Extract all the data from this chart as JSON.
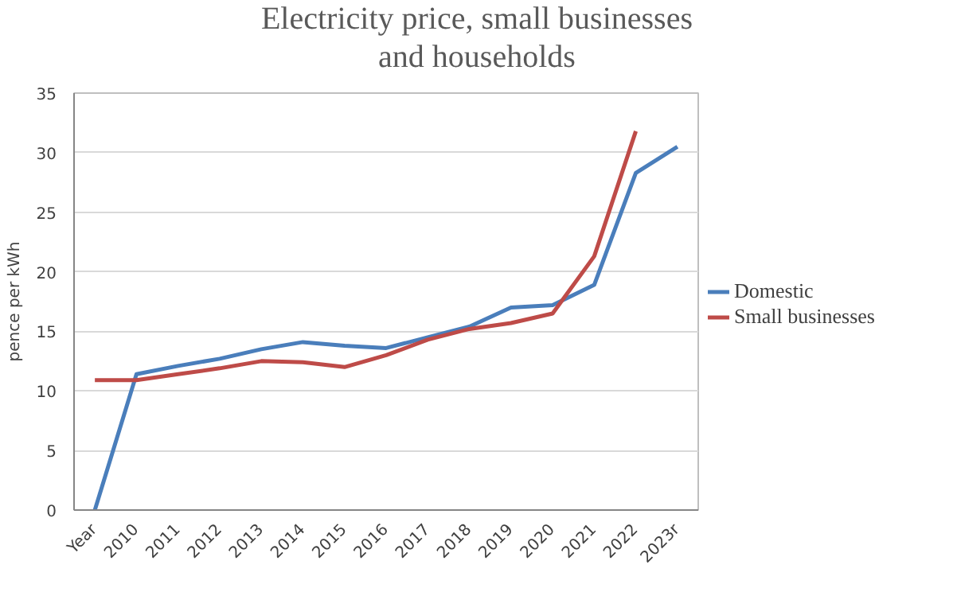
{
  "chart_data": {
    "type": "line",
    "title": "Electricity price, small businesses and households",
    "ylabel": "pence per kWh",
    "categories": [
      "Year",
      "2010",
      "2011",
      "2012",
      "2013",
      "2014",
      "2015",
      "2016",
      "2017",
      "2018",
      "2019",
      "2020",
      "2021",
      "2022",
      "2023r"
    ],
    "series": [
      {
        "name": "Domestic",
        "color": "#4a7ebb",
        "values": [
          0,
          11.4,
          12.1,
          12.7,
          13.5,
          14.1,
          13.8,
          13.6,
          14.5,
          15.4,
          17.0,
          17.2,
          18.9,
          28.3,
          30.5
        ]
      },
      {
        "name": "Small businesses",
        "color": "#be4b48",
        "values": [
          10.9,
          10.9,
          11.4,
          11.9,
          12.5,
          12.4,
          12.0,
          13.0,
          14.3,
          15.2,
          15.7,
          16.5,
          21.3,
          31.8,
          null
        ]
      }
    ],
    "ylim": [
      0,
      35
    ],
    "yticks": [
      0,
      5,
      10,
      15,
      20,
      25,
      30,
      35
    ],
    "grid": "y",
    "legend": "right",
    "marker": "none",
    "line_style": "solid"
  }
}
